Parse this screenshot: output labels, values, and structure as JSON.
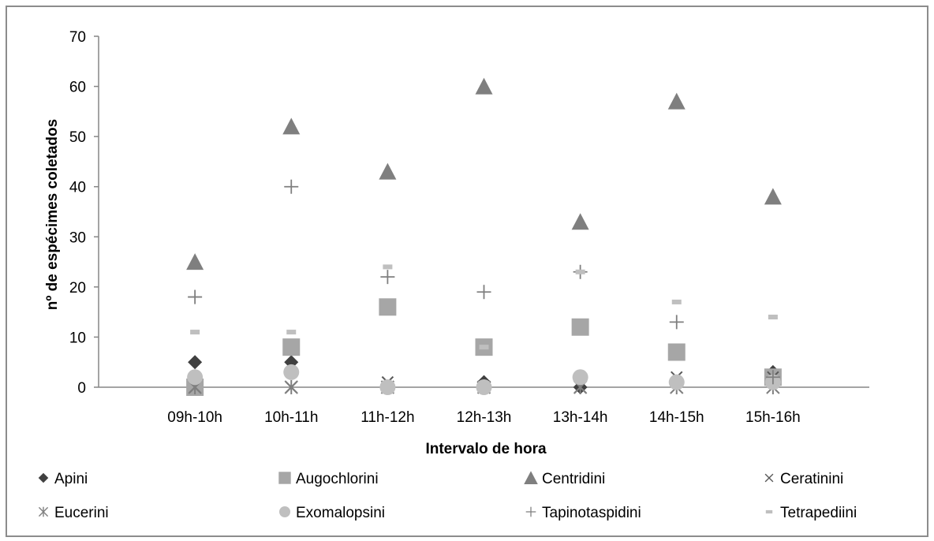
{
  "chart_data": {
    "type": "scatter",
    "categories": [
      "09h-10h",
      "10h-11h",
      "11h-12h",
      "12h-13h",
      "13h-14h",
      "14h-15h",
      "15h-16h"
    ],
    "xlabel": "Intervalo de hora",
    "ylabel": "nº de espécimes coletados",
    "ylim": [
      0,
      70
    ],
    "yticks": [
      0,
      10,
      20,
      30,
      40,
      50,
      60,
      70
    ],
    "grid": false,
    "legend_position": "bottom",
    "series": [
      {
        "name": "Apini",
        "marker": "diamond",
        "color": "#404040",
        "values": [
          5,
          5,
          0,
          1,
          0,
          1,
          3
        ]
      },
      {
        "name": "Augochlorini",
        "marker": "square",
        "color": "#a6a6a6",
        "values": [
          0,
          8,
          16,
          8,
          12,
          7,
          2
        ]
      },
      {
        "name": "Centridini",
        "marker": "triangle",
        "color": "#7f7f7f",
        "values": [
          25,
          52,
          43,
          60,
          33,
          57,
          38
        ]
      },
      {
        "name": "Ceratinini",
        "marker": "x",
        "color": "#595959",
        "values": [
          0,
          0,
          1,
          0,
          0,
          2,
          2
        ]
      },
      {
        "name": "Eucerini",
        "marker": "asterisk",
        "color": "#7f7f7f",
        "values": [
          0,
          0,
          0,
          0,
          0,
          0,
          0
        ]
      },
      {
        "name": "Exomalopsini",
        "marker": "circle",
        "color": "#bfbfbf",
        "values": [
          2,
          3,
          0,
          0,
          2,
          1,
          1
        ]
      },
      {
        "name": "Tapinotaspidini",
        "marker": "plus",
        "color": "#7f7f7f",
        "values": [
          18,
          40,
          22,
          19,
          23,
          13,
          2
        ]
      },
      {
        "name": "Tetrapediini",
        "marker": "dash",
        "color": "#bfbfbf",
        "values": [
          11,
          11,
          24,
          8,
          23,
          17,
          14
        ]
      }
    ]
  }
}
